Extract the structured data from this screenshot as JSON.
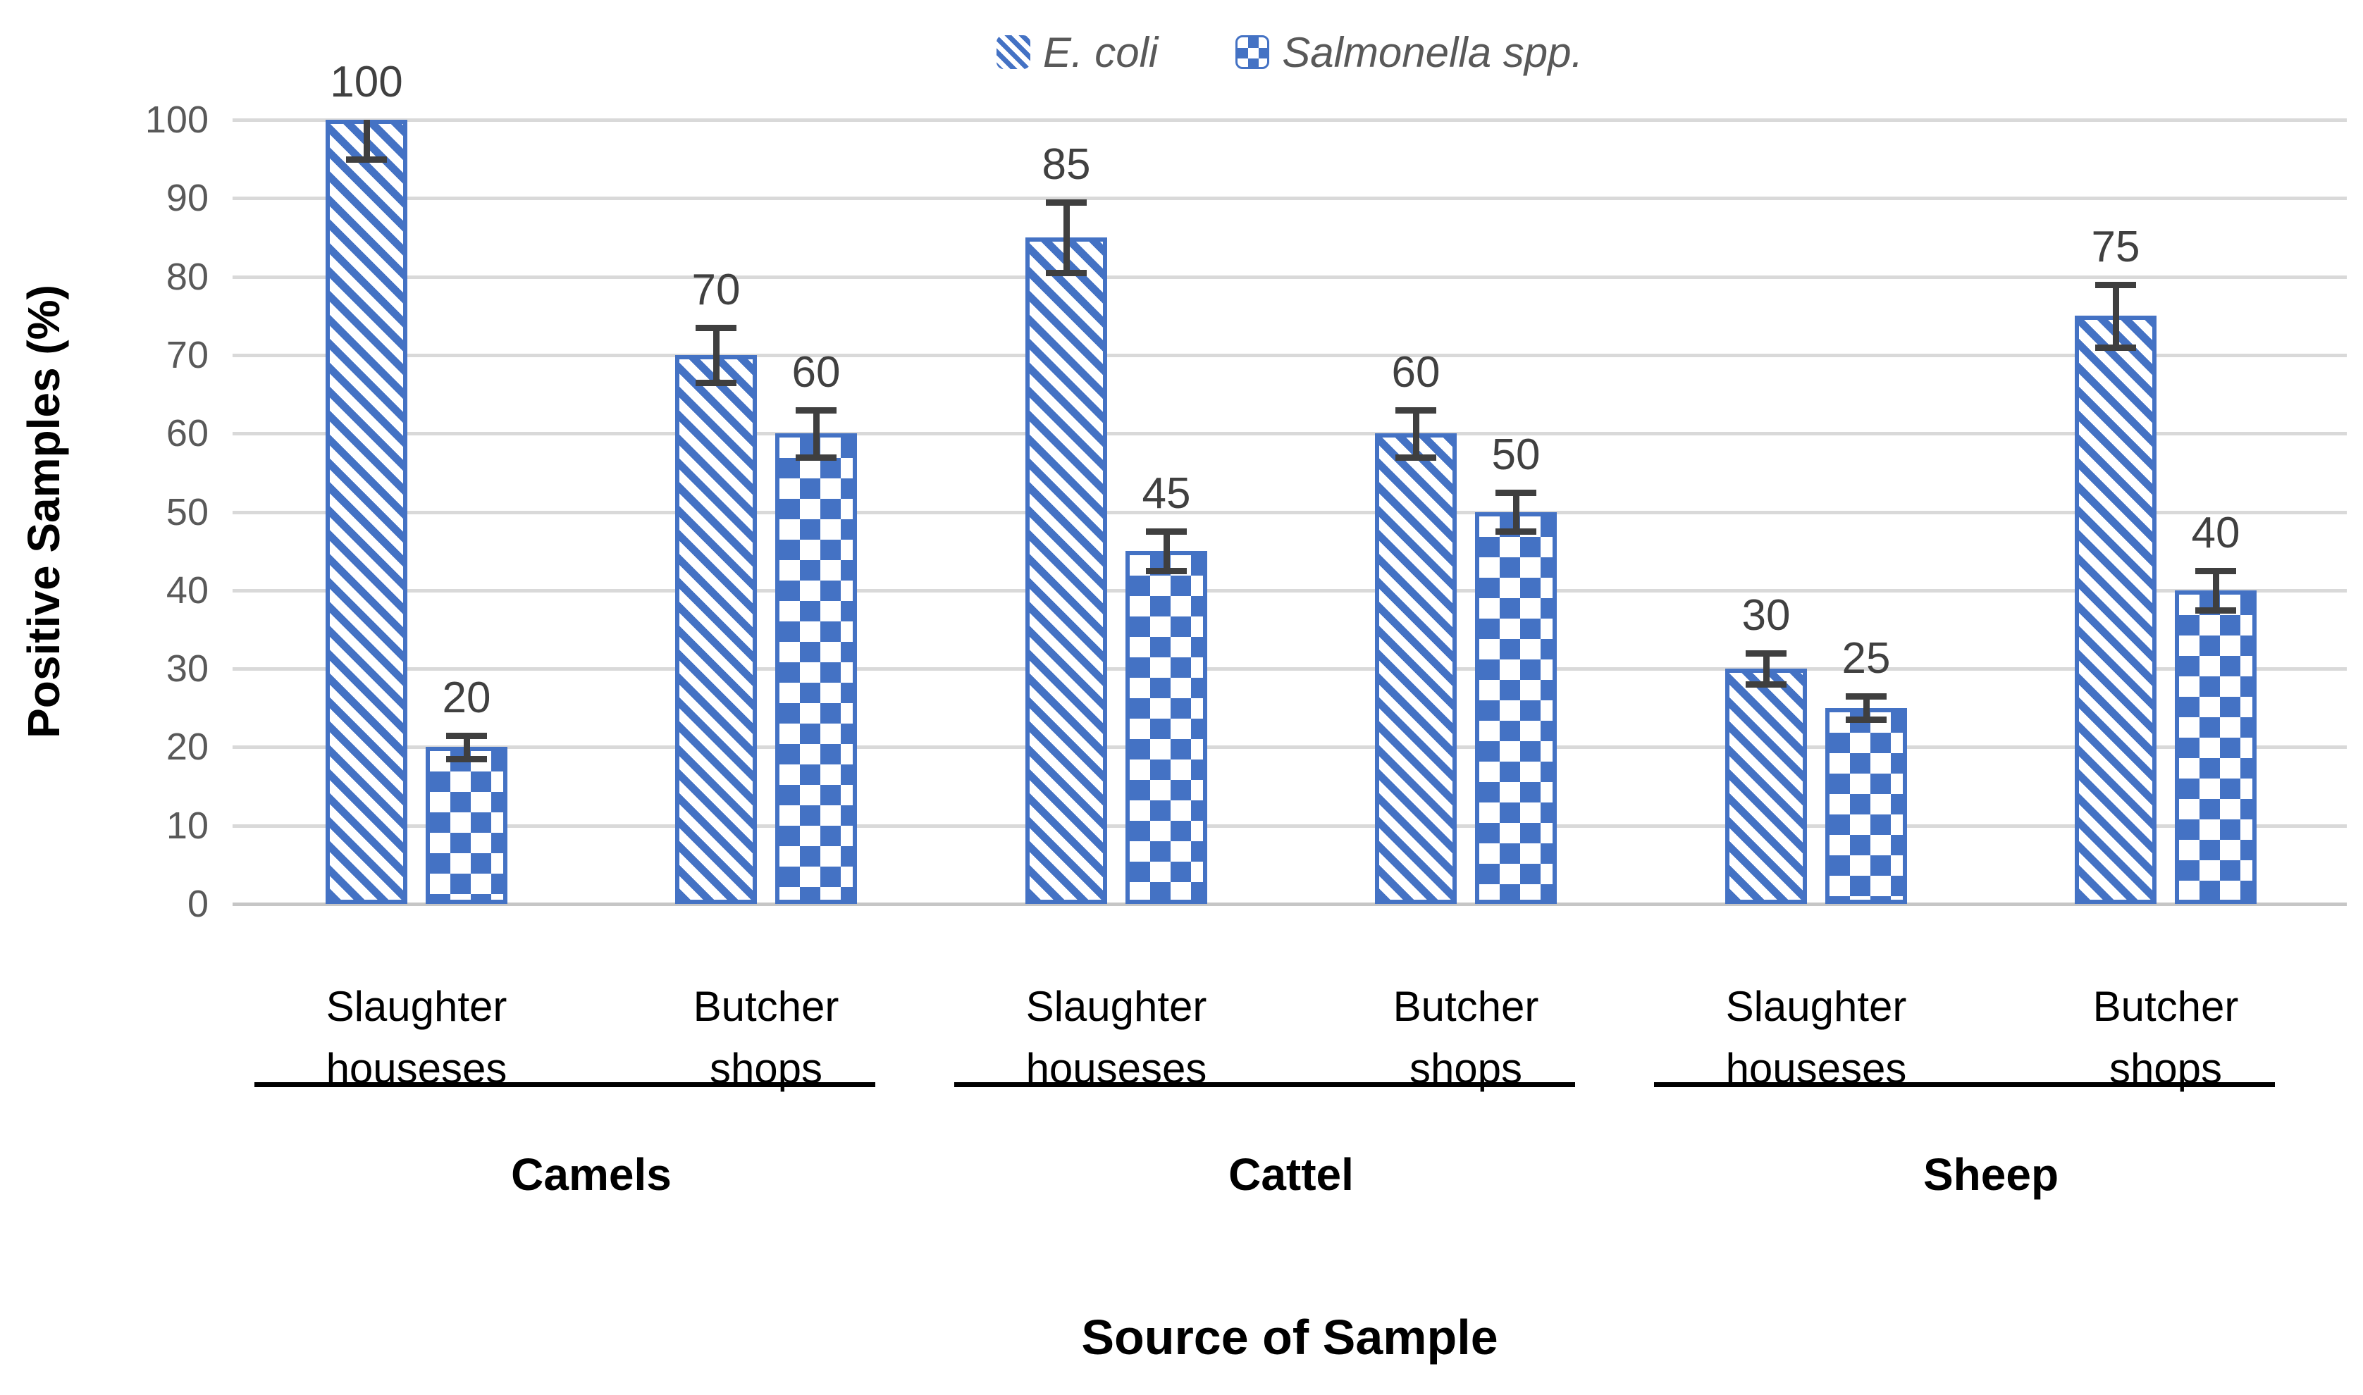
{
  "colors": {
    "bar_blue": "#4472C4",
    "error_bar_gray": "#3f3f3f",
    "tick_gray": "#595959",
    "gridline_gray": "#D9D9D9",
    "text_black": "#000000"
  },
  "chart_data": {
    "type": "bar",
    "title": "",
    "xlabel": "Source of Sample",
    "ylabel": "Positive Samples (%)",
    "ylim": [
      0,
      100
    ],
    "yticks": [
      0,
      10,
      20,
      30,
      40,
      50,
      60,
      70,
      80,
      90,
      100
    ],
    "grid": true,
    "legend_position": "top-center",
    "series": [
      {
        "name": "E. coli",
        "pattern": "diagonal-hatch",
        "color": "#4472C4"
      },
      {
        "name": "Salmonella spp.",
        "pattern": "checker",
        "color": "#4472C4"
      }
    ],
    "groups": [
      {
        "label": "Camels",
        "categories": [
          {
            "label_lines": [
              "Slaughter",
              "houseses"
            ],
            "values": {
              "ecoli": 100,
              "salmonella": 20
            },
            "errors": {
              "ecoli": 5,
              "salmonella": 1.5
            }
          },
          {
            "label_lines": [
              "Butcher",
              "shops"
            ],
            "values": {
              "ecoli": 70,
              "salmonella": 60
            },
            "errors": {
              "ecoli": 3.5,
              "salmonella": 3
            }
          }
        ]
      },
      {
        "label": "Cattel",
        "categories": [
          {
            "label_lines": [
              "Slaughter",
              "houseses"
            ],
            "values": {
              "ecoli": 85,
              "salmonella": 45
            },
            "errors": {
              "ecoli": 4.5,
              "salmonella": 2.5
            }
          },
          {
            "label_lines": [
              "Butcher",
              "shops"
            ],
            "values": {
              "ecoli": 60,
              "salmonella": 50
            },
            "errors": {
              "ecoli": 3,
              "salmonella": 2.5
            }
          }
        ]
      },
      {
        "label": "Sheep",
        "categories": [
          {
            "label_lines": [
              "Slaughter",
              "houseses"
            ],
            "values": {
              "ecoli": 30,
              "salmonella": 25
            },
            "errors": {
              "ecoli": 2,
              "salmonella": 1.5
            }
          },
          {
            "label_lines": [
              "Butcher",
              "shops"
            ],
            "values": {
              "ecoli": 75,
              "salmonella": 40
            },
            "errors": {
              "ecoli": 4,
              "salmonella": 2.5
            }
          }
        ]
      }
    ]
  }
}
